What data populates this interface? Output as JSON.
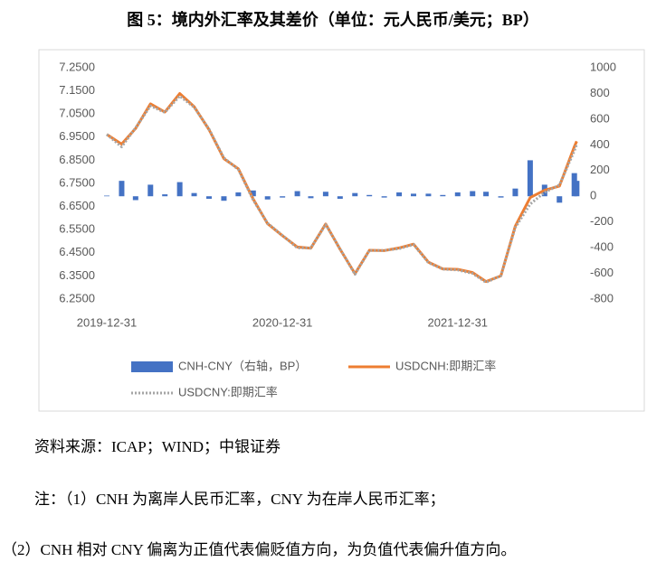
{
  "chart_data": {
    "type": "combo",
    "title": "图 5：境内外汇率及其差价（单位：元人民币/美元；BP）",
    "x": [
      "2019-12-31",
      "2020-01-31",
      "2020-02-29",
      "2020-03-31",
      "2020-04-30",
      "2020-05-31",
      "2020-06-30",
      "2020-07-31",
      "2020-08-31",
      "2020-09-30",
      "2020-10-31",
      "2020-11-30",
      "2020-12-31",
      "2021-01-31",
      "2021-02-28",
      "2021-03-31",
      "2021-04-30",
      "2021-05-31",
      "2021-06-30",
      "2021-07-31",
      "2021-08-31",
      "2021-09-30",
      "2021-10-31",
      "2021-11-30",
      "2021-12-31",
      "2022-01-31",
      "2022-02-28",
      "2022-03-31",
      "2022-04-30",
      "2022-05-31",
      "2022-06-30",
      "2022-07-31",
      "2022-08-31",
      "2022-09-05"
    ],
    "xlim": [
      "2019-12-31",
      "2022-09-10"
    ],
    "xticks": [
      "2019-12-31",
      "2020-12-31",
      "2021-12-31"
    ],
    "ylim": [
      6.25,
      7.25
    ],
    "yticks": [
      {
        "value": 6.25,
        "label": "6.2500"
      },
      {
        "value": 6.35,
        "label": "6.3500"
      },
      {
        "value": 6.45,
        "label": "6.4500"
      },
      {
        "value": 6.55,
        "label": "6.5500"
      },
      {
        "value": 6.65,
        "label": "6.6500"
      },
      {
        "value": 6.75,
        "label": "6.7500"
      },
      {
        "value": 6.85,
        "label": "6.8500"
      },
      {
        "value": 6.95,
        "label": "6.9500"
      },
      {
        "value": 7.05,
        "label": "7.0500"
      },
      {
        "value": 7.15,
        "label": "7.1500"
      },
      {
        "value": 7.25,
        "label": "7.2500"
      }
    ],
    "y2lim": [
      -800,
      1000
    ],
    "y2ticks": [
      -800,
      -600,
      -400,
      -200,
      0,
      200,
      400,
      600,
      800,
      1000
    ],
    "series": [
      {
        "name": "CNH-CNY（右轴，BP）",
        "type": "bar",
        "axis": "y2",
        "color": "#4472c4",
        "values": [
          5,
          120,
          -30,
          90,
          15,
          110,
          25,
          -20,
          -35,
          30,
          45,
          -25,
          -10,
          40,
          -15,
          35,
          -20,
          25,
          10,
          -10,
          30,
          20,
          20,
          10,
          30,
          40,
          35,
          -10,
          60,
          280,
          90,
          -50,
          180,
          120
        ]
      },
      {
        "name": "USDCNH:即期汇率",
        "type": "line",
        "color": "#ed7d31",
        "values": [
          6.9623,
          6.9201,
          6.987,
          7.0941,
          7.0586,
          7.1387,
          7.082,
          6.9826,
          6.857,
          6.8131,
          6.6826,
          6.5757,
          6.5239,
          6.4749,
          6.4698,
          6.5748,
          6.4652,
          6.3597,
          6.4611,
          6.4592,
          6.4709,
          6.4874,
          6.4096,
          6.3804,
          6.3787,
          6.365,
          6.3257,
          6.3499,
          6.565,
          6.6885,
          6.7204,
          6.7387,
          6.9086,
          6.932
        ]
      },
      {
        "name": "USDCNY:即期汇率",
        "type": "line",
        "dashed": true,
        "color": "#a5a5a5",
        "values": [
          6.9618,
          6.9081,
          6.99,
          7.0851,
          7.0571,
          7.1277,
          7.0795,
          6.9846,
          6.8605,
          6.8101,
          6.6781,
          6.5782,
          6.5249,
          6.4709,
          6.4713,
          6.5713,
          6.4672,
          6.3572,
          6.4601,
          6.4602,
          6.4679,
          6.4854,
          6.4076,
          6.3794,
          6.3757,
          6.361,
          6.3222,
          6.3509,
          6.559,
          6.6605,
          6.7114,
          6.7437,
          6.8906,
          6.92
        ]
      }
    ]
  },
  "notes": {
    "source": "资料来源：ICAP；WIND；中银证券",
    "note1": "注：（1）CNH 为离岸人民币汇率，CNY 为在岸人民币汇率；",
    "note2": "（2）CNH 相对 CNY 偏离为正值代表偏贬值方向，为负值代表偏升值方向。"
  }
}
